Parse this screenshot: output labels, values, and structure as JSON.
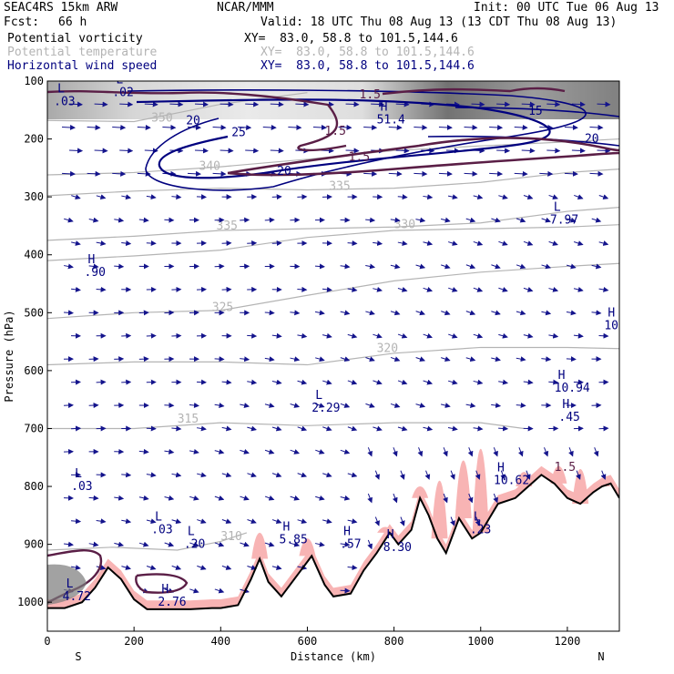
{
  "header": {
    "model": "SEAC4RS 15km ARW",
    "org": "NCAR/MMM",
    "init": "Init: 00 UTC Tue 06 Aug 13",
    "fcst_label": "Fcst:",
    "fcst_value": "66 h",
    "valid": "Valid: 18 UTC Thu 08 Aug 13 (13 CDT Thu 08 Aug 13)"
  },
  "fields": [
    {
      "name": "Potential vorticity",
      "xy": "XY=  83.0, 58.8 to 101.5,144.6",
      "color": "#000000",
      "xycolor": "#000000"
    },
    {
      "name": "Potential temperature",
      "xy": "XY=  83.0, 58.8 to 101.5,144.6",
      "color": "#b4b4b4",
      "xycolor": "#b4b4b4"
    },
    {
      "name": "Horizontal wind speed",
      "xy": "XY=  83.0, 58.8 to 101.5,144.6",
      "color": "#00007f",
      "xycolor": "#00007f"
    }
  ],
  "colors": {
    "theta": "#b4b4b4",
    "wind": "#14148c",
    "pv": "#5a1e46",
    "terrain_fill": "#f8b4b4",
    "terrain_line": "#000000",
    "grey_shade": "#808080"
  },
  "chart_data": {
    "type": "cross-section",
    "xlabel": "Distance (km)",
    "ylabel": "Pressure (hPa)",
    "x_range": [
      0,
      1320
    ],
    "y_range": [
      1050,
      100
    ],
    "x_ticks": [
      0,
      200,
      400,
      600,
      800,
      1000,
      1200
    ],
    "y_ticks": [
      100,
      200,
      300,
      400,
      500,
      600,
      700,
      800,
      900,
      1000
    ],
    "x_end_labels": {
      "left": "S",
      "right": "N"
    },
    "theta_contours": [
      {
        "label": "350",
        "lx": 240,
        "lp": 170,
        "pts": [
          [
            0,
            168
          ],
          [
            200,
            170
          ],
          [
            400,
            140
          ],
          [
            600,
            120
          ]
        ]
      },
      {
        "label": "340",
        "lx": 350,
        "lp": 253,
        "pts": [
          [
            0,
            262
          ],
          [
            200,
            258
          ],
          [
            400,
            248
          ],
          [
            600,
            235
          ],
          [
            800,
            220
          ],
          [
            1000,
            212
          ],
          [
            1200,
            205
          ],
          [
            1320,
            200
          ]
        ]
      },
      {
        "label": "335",
        "lx": 650,
        "lp": 288,
        "pts": [
          [
            0,
            298
          ],
          [
            200,
            290
          ],
          [
            400,
            285
          ],
          [
            600,
            288
          ],
          [
            800,
            285
          ],
          [
            1000,
            275
          ],
          [
            1200,
            258
          ],
          [
            1320,
            252
          ]
        ]
      },
      {
        "label": "335",
        "lx": 390,
        "lp": 356,
        "pts": [
          [
            0,
            375
          ],
          [
            200,
            368
          ],
          [
            400,
            358
          ],
          [
            600,
            355
          ],
          [
            800,
            352
          ],
          [
            1000,
            345
          ],
          [
            1200,
            325
          ],
          [
            1320,
            318
          ]
        ]
      },
      {
        "label": "330",
        "lx": 800,
        "lp": 354,
        "pts": [
          [
            0,
            410
          ],
          [
            200,
            402
          ],
          [
            400,
            392
          ],
          [
            600,
            370
          ],
          [
            800,
            358
          ],
          [
            1000,
            355
          ],
          [
            1200,
            352
          ],
          [
            1320,
            348
          ]
        ]
      },
      {
        "label": "325",
        "lx": 380,
        "lp": 497,
        "pts": [
          [
            0,
            510
          ],
          [
            200,
            500
          ],
          [
            400,
            496
          ],
          [
            600,
            470
          ],
          [
            800,
            445
          ],
          [
            1000,
            430
          ],
          [
            1200,
            420
          ],
          [
            1320,
            415
          ]
        ]
      },
      {
        "label": "320",
        "lx": 760,
        "lp": 568,
        "pts": [
          [
            0,
            590
          ],
          [
            200,
            585
          ],
          [
            400,
            585
          ],
          [
            600,
            590
          ],
          [
            800,
            570
          ],
          [
            1000,
            560
          ],
          [
            1200,
            560
          ],
          [
            1320,
            562
          ]
        ]
      },
      {
        "label": "315",
        "lx": 300,
        "lp": 690,
        "pts": [
          [
            0,
            700
          ],
          [
            200,
            700
          ],
          [
            400,
            690
          ],
          [
            600,
            695
          ],
          [
            800,
            690
          ],
          [
            1000,
            690
          ],
          [
            1100,
            700
          ]
        ]
      },
      {
        "label": "310",
        "lx": 400,
        "lp": 893,
        "pts": [
          [
            0,
            910
          ],
          [
            150,
            905
          ],
          [
            300,
            910
          ],
          [
            400,
            895
          ],
          [
            460,
            880
          ]
        ]
      }
    ],
    "isotachs": [
      {
        "label": "20",
        "lx": 320,
        "lp": 175
      },
      {
        "label": "25",
        "lx": 425,
        "lp": 195
      },
      {
        "label": "20",
        "lx": 530,
        "lp": 262
      },
      {
        "label": "15",
        "lx": 1110,
        "lp": 158
      },
      {
        "label": "20",
        "lx": 1240,
        "lp": 206
      }
    ],
    "pv_labels": [
      {
        "label": "1.5",
        "lx": 720,
        "lp": 130
      },
      {
        "label": "1.5",
        "lx": 640,
        "lp": 193
      },
      {
        "label": "1.5",
        "lx": 695,
        "lp": 238
      },
      {
        "label": "1.5",
        "lx": 1170,
        "lp": 773
      }
    ],
    "extrema": [
      {
        "type": "L",
        "value": ".02",
        "x": 150,
        "p": 120
      },
      {
        "type": "L",
        "value": ".03",
        "x": 15,
        "p": 135
      },
      {
        "type": "H",
        "value": "51.4",
        "x": 760,
        "p": 167
      },
      {
        "type": "L",
        "value": "7.97",
        "x": 1160,
        "p": 340
      },
      {
        "type": "H",
        "value": ".90",
        "x": 85,
        "p": 430
      },
      {
        "type": "H",
        "value": "10.",
        "x": 1285,
        "p": 522
      },
      {
        "type": "H",
        "value": "10.94",
        "x": 1170,
        "p": 630
      },
      {
        "type": "H",
        "value": ".45",
        "x": 1180,
        "p": 680
      },
      {
        "type": "L",
        "value": "2.29",
        "x": 610,
        "p": 665
      },
      {
        "type": "H",
        "value": "10.62",
        "x": 1030,
        "p": 790
      },
      {
        "type": "L",
        "value": ".03",
        "x": 55,
        "p": 800
      },
      {
        "type": "L",
        "value": ".03",
        "x": 240,
        "p": 875
      },
      {
        "type": "L",
        "value": ".20",
        "x": 315,
        "p": 900
      },
      {
        "type": "H",
        "value": "5.85",
        "x": 535,
        "p": 892
      },
      {
        "type": "H",
        "value": ".57",
        "x": 675,
        "p": 900
      },
      {
        "type": "H",
        "value": "8.30",
        "x": 775,
        "p": 905
      },
      {
        "type": "L",
        "value": ".23",
        "x": 975,
        "p": 875
      },
      {
        "type": "L",
        "value": "4.72",
        "x": 35,
        "p": 990
      },
      {
        "type": "H",
        "value": "2.76",
        "x": 255,
        "p": 1000
      }
    ],
    "terrain": [
      [
        0,
        1010
      ],
      [
        40,
        1010
      ],
      [
        80,
        1000
      ],
      [
        110,
        975
      ],
      [
        140,
        940
      ],
      [
        170,
        960
      ],
      [
        200,
        995
      ],
      [
        230,
        1012
      ],
      [
        280,
        1012
      ],
      [
        330,
        1012
      ],
      [
        380,
        1010
      ],
      [
        400,
        1010
      ],
      [
        440,
        1005
      ],
      [
        470,
        960
      ],
      [
        490,
        925
      ],
      [
        510,
        965
      ],
      [
        540,
        990
      ],
      [
        580,
        950
      ],
      [
        610,
        920
      ],
      [
        640,
        970
      ],
      [
        660,
        990
      ],
      [
        700,
        985
      ],
      [
        730,
        945
      ],
      [
        760,
        915
      ],
      [
        790,
        880
      ],
      [
        810,
        900
      ],
      [
        840,
        875
      ],
      [
        860,
        820
      ],
      [
        880,
        850
      ],
      [
        900,
        890
      ],
      [
        920,
        915
      ],
      [
        950,
        855
      ],
      [
        980,
        890
      ],
      [
        1000,
        880
      ],
      [
        1020,
        855
      ],
      [
        1040,
        830
      ],
      [
        1080,
        820
      ],
      [
        1110,
        800
      ],
      [
        1140,
        780
      ],
      [
        1170,
        795
      ],
      [
        1200,
        820
      ],
      [
        1230,
        830
      ],
      [
        1260,
        810
      ],
      [
        1280,
        800
      ],
      [
        1300,
        795
      ],
      [
        1320,
        820
      ]
    ],
    "pink_peaks": [
      [
        490,
        880
      ],
      [
        600,
        890
      ],
      [
        780,
        870
      ],
      [
        860,
        800
      ],
      [
        905,
        790
      ],
      [
        960,
        755
      ],
      [
        1000,
        735
      ],
      [
        1100,
        775
      ],
      [
        1180,
        765
      ],
      [
        1230,
        770
      ],
      [
        1280,
        790
      ]
    ]
  }
}
